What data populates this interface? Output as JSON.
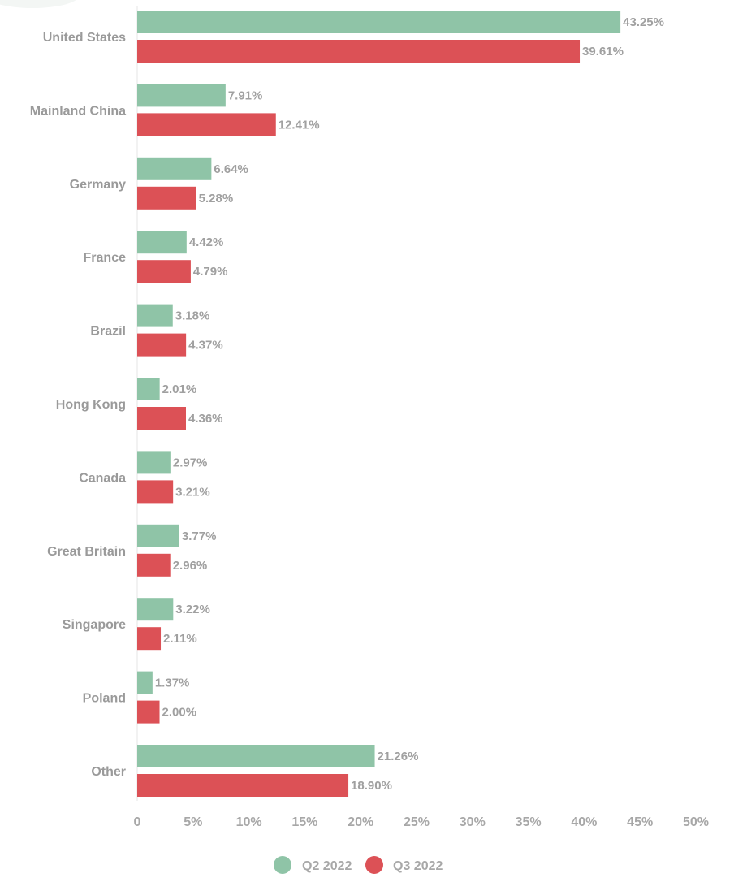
{
  "chart_data": {
    "type": "bar",
    "orientation": "horizontal",
    "title": "",
    "xlabel": "",
    "ylabel": "",
    "categories": [
      "United States",
      "Mainland China",
      "Germany",
      "France",
      "Brazil",
      "Hong Kong",
      "Canada",
      "Great Britain",
      "Singapore",
      "Poland",
      "Other"
    ],
    "series": [
      {
        "name": "Q2 2022",
        "color": "#8fc4a7",
        "values": [
          43.25,
          7.91,
          6.64,
          4.42,
          3.18,
          2.01,
          2.97,
          3.77,
          3.22,
          1.37,
          21.26
        ],
        "labels": [
          "43.25%",
          "7.91%",
          "6.64%",
          "4.42%",
          "3.18%",
          "2.01%",
          "2.97%",
          "3.77%",
          "3.22%",
          "1.37%",
          "21.26%"
        ]
      },
      {
        "name": "Q3 2022",
        "color": "#dc5156",
        "values": [
          39.61,
          12.41,
          5.28,
          4.79,
          4.37,
          4.36,
          3.21,
          2.96,
          2.11,
          2.0,
          18.9
        ],
        "labels": [
          "39.61%",
          "12.41%",
          "5.28%",
          "4.79%",
          "4.37%",
          "4.36%",
          "3.21%",
          "2.96%",
          "2.11%",
          "2.00%",
          "18.90%"
        ]
      }
    ],
    "xlim": [
      0,
      50
    ],
    "x_ticks": [
      0,
      5,
      10,
      15,
      20,
      25,
      30,
      35,
      40,
      45,
      50
    ],
    "x_tick_labels": [
      "0",
      "5%",
      "10%",
      "15%",
      "20%",
      "25%",
      "30%",
      "35%",
      "40%",
      "45%",
      "50%"
    ],
    "grid": false,
    "legend_position": "bottom-center"
  }
}
